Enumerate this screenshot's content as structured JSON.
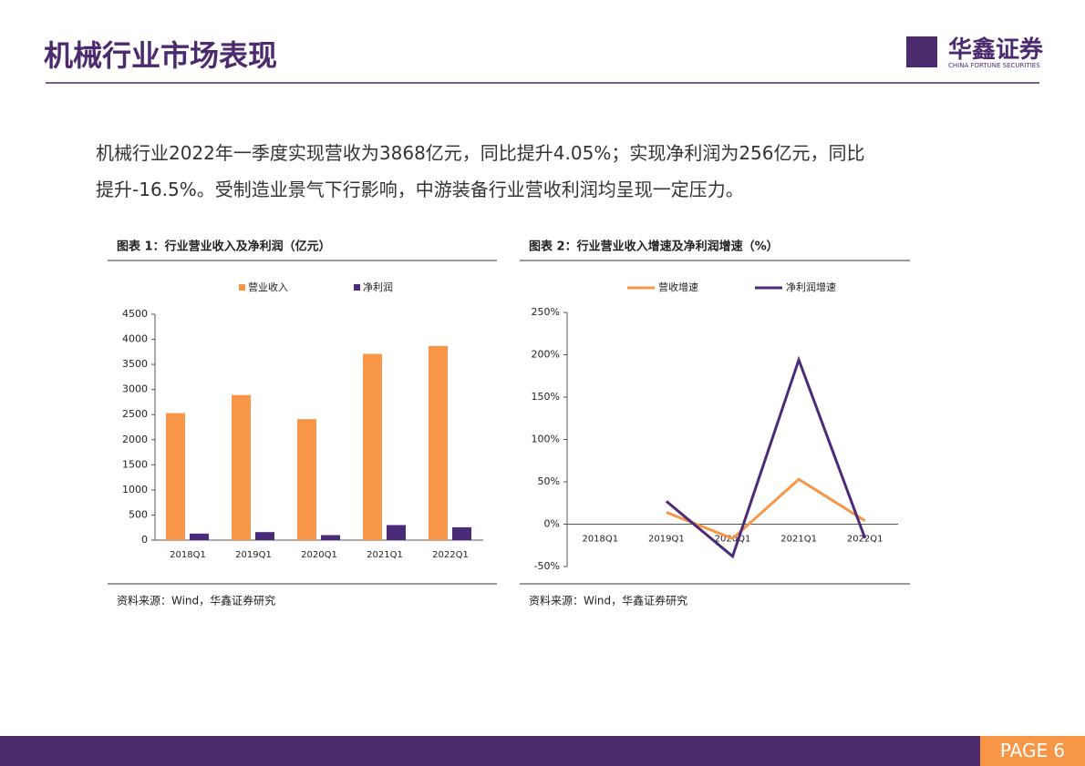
{
  "header": {
    "title": "机械行业市场表现",
    "logo_cn": "华鑫证券",
    "logo_en": "CHINA FORTUNE SECURITIES"
  },
  "body": {
    "text": "机械行业2022年一季度实现营收为3868亿元，同比提升4.05%；实现净利润为256亿元，同比提升-16.5%。受制造业景气下行影响，中游装备行业营收利润均呈现一定压力。"
  },
  "chart_data": [
    {
      "type": "bar",
      "title": "图表 1：行业营业收入及净利润（亿元）",
      "categories": [
        "2018Q1",
        "2019Q1",
        "2020Q1",
        "2021Q1",
        "2022Q1"
      ],
      "series": [
        {
          "name": "营业收入",
          "color": "#f79646",
          "values": [
            2530,
            2890,
            2410,
            3710,
            3868
          ]
        },
        {
          "name": "净利润",
          "color": "#4b2a7a",
          "values": [
            130,
            160,
            100,
            300,
            256
          ]
        }
      ],
      "ylim": [
        0,
        4500
      ],
      "yticks": [
        0,
        500,
        1000,
        1500,
        2000,
        2500,
        3000,
        3500,
        4000,
        4500
      ],
      "source": "资料来源：Wind，华鑫证券研究"
    },
    {
      "type": "line",
      "title": "图表 2：行业营业收入增速及净利润增速（%）",
      "categories": [
        "2018Q1",
        "2019Q1",
        "2020Q1",
        "2021Q1",
        "2022Q1"
      ],
      "series": [
        {
          "name": "营收增速",
          "color": "#f79646",
          "values": [
            null,
            14,
            -17,
            53,
            4.05
          ]
        },
        {
          "name": "净利润增速",
          "color": "#4b2a7a",
          "values": [
            null,
            27,
            -38,
            194,
            -16.5
          ]
        }
      ],
      "ylim": [
        -50,
        250
      ],
      "yticks": [
        {
          "value": -50,
          "label": "-50%"
        },
        {
          "value": 0,
          "label": "0%"
        },
        {
          "value": 50,
          "label": "50%"
        },
        {
          "value": 100,
          "label": "100%"
        },
        {
          "value": 150,
          "label": "150%"
        },
        {
          "value": 200,
          "label": "200%"
        },
        {
          "value": 250,
          "label": "250%"
        }
      ],
      "source": "资料来源：Wind，华鑫证券研究"
    }
  ],
  "footer": {
    "page": "PAGE 6"
  }
}
